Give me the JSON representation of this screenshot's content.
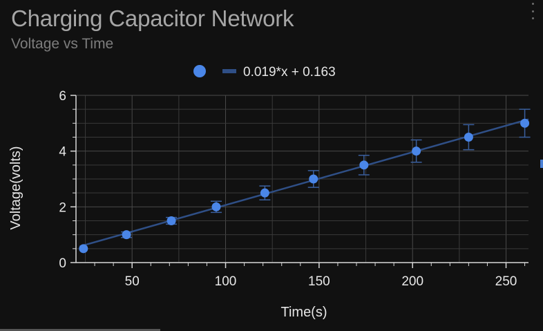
{
  "header": {
    "title": "Charging Capacitor Network",
    "subtitle": "Voltage vs Time"
  },
  "menu": {
    "icon": "kebab-menu-icon"
  },
  "colors": {
    "background": "#111111",
    "point": "#4a86e8",
    "fit_line": "#2f4f86",
    "error_bar": "#3a5f9e",
    "grid": "#3a3a3a",
    "axis": "#d9d9d9",
    "tick_label": "#e8e8e8"
  },
  "chart_data": {
    "type": "scatter",
    "title": "Charging Capacitor Network",
    "subtitle": "Voltage vs Time",
    "xlabel": "Time(s)",
    "ylabel": "Voltage(volts)",
    "xlim": [
      20,
      262
    ],
    "ylim": [
      0,
      6
    ],
    "x_ticks": [
      50,
      100,
      150,
      200,
      250
    ],
    "y_ticks": [
      0,
      2,
      4,
      6
    ],
    "grid": true,
    "legend": {
      "position": "top-center",
      "entries": [
        "",
        "0.019*x + 0.163"
      ]
    },
    "series": [
      {
        "kind": "points",
        "points": [
          {
            "x": 24,
            "y": 0.5,
            "err": 0.05
          },
          {
            "x": 47,
            "y": 1.0,
            "err": 0.1
          },
          {
            "x": 71,
            "y": 1.5,
            "err": 0.12
          },
          {
            "x": 95,
            "y": 2.0,
            "err": 0.2
          },
          {
            "x": 121,
            "y": 2.5,
            "err": 0.25
          },
          {
            "x": 147,
            "y": 3.0,
            "err": 0.3
          },
          {
            "x": 174,
            "y": 3.5,
            "err": 0.35
          },
          {
            "x": 202,
            "y": 4.0,
            "err": 0.4
          },
          {
            "x": 230,
            "y": 4.5,
            "err": 0.45
          },
          {
            "x": 260,
            "y": 5.0,
            "err": 0.5
          }
        ]
      },
      {
        "name": "0.019*x + 0.163",
        "kind": "fit",
        "slope": 0.019,
        "intercept": 0.163,
        "x_range": [
          22,
          262
        ]
      }
    ]
  }
}
